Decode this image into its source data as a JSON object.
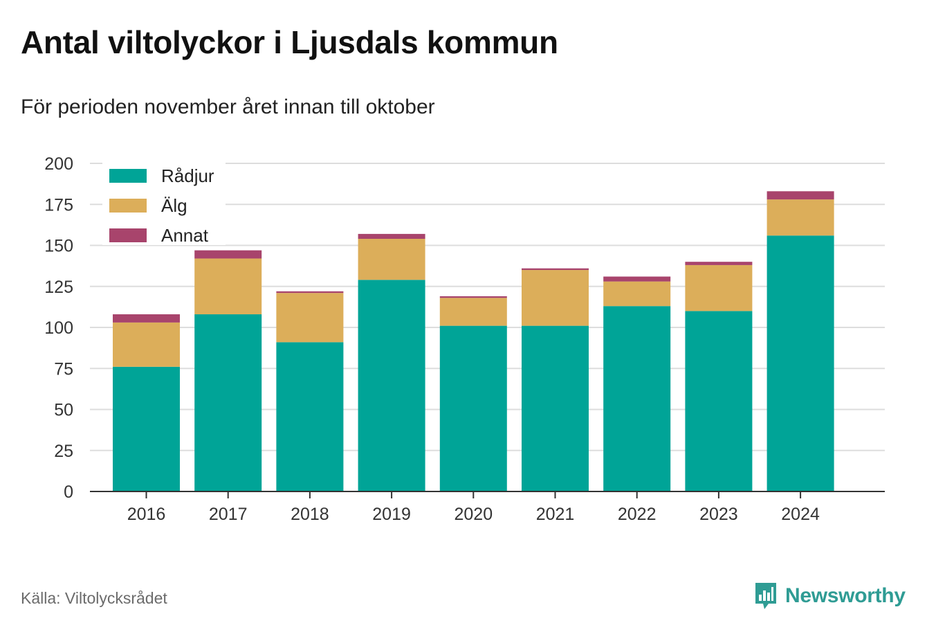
{
  "title": "Antal viltolyckor i Ljusdals kommun",
  "subtitle": "För perioden november året innan till oktober",
  "source": "Källa: Viltolycksrådet",
  "brand": "Newsworthy",
  "colors": {
    "radjur": "#00a497",
    "alg": "#dcae5a",
    "annat": "#a8446c",
    "grid": "#dddddd",
    "axis": "#333333",
    "brand": "#2f9c94"
  },
  "chart_data": {
    "type": "bar",
    "stacked": true,
    "categories": [
      "2016",
      "2017",
      "2018",
      "2019",
      "2020",
      "2021",
      "2022",
      "2023",
      "2024"
    ],
    "series": [
      {
        "name": "Rådjur",
        "color": "#00a497",
        "values": [
          76,
          108,
          91,
          129,
          101,
          101,
          113,
          110,
          156
        ]
      },
      {
        "name": "Älg",
        "color": "#dcae5a",
        "values": [
          27,
          34,
          30,
          25,
          17,
          34,
          15,
          28,
          22
        ]
      },
      {
        "name": "Annat",
        "color": "#a8446c",
        "values": [
          5,
          5,
          1,
          3,
          1,
          1,
          3,
          2,
          5
        ]
      }
    ],
    "yticks": [
      0,
      25,
      50,
      75,
      100,
      125,
      150,
      175,
      200
    ],
    "ylim": [
      0,
      200
    ],
    "grid": true,
    "legend_position": "top-left"
  }
}
